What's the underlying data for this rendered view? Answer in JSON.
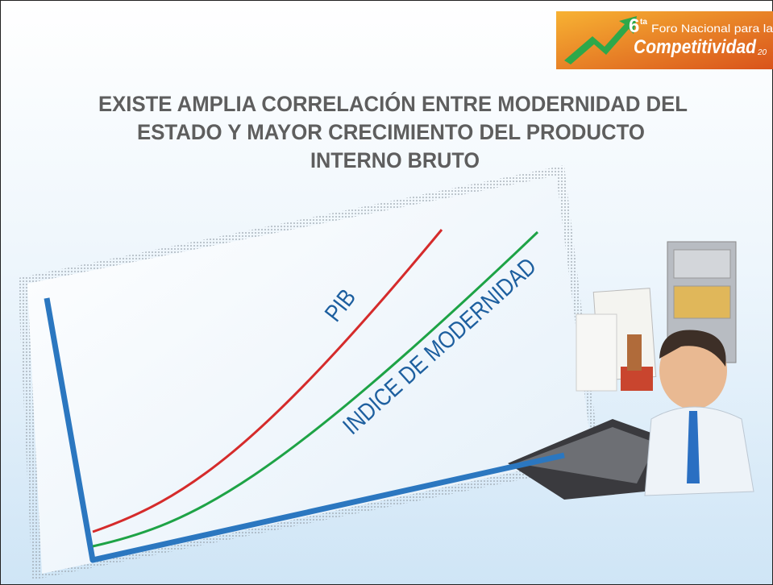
{
  "logo": {
    "number": "6",
    "ordinal": "ta",
    "line1": "Foro Nacional para la",
    "line2": "Competitividad",
    "year": "20"
  },
  "title": {
    "lines": [
      "EXISTE AMPLIA CORRELACIÓN ENTRE MODERNIDAD DEL",
      "ESTADO Y MAYOR CRECIMIENTO DEL PRODUCTO",
      "INTERNO BRUTO"
    ]
  },
  "chart": {
    "labels": {
      "red": "PIB",
      "green": "INDICE DE MODERNIDAD"
    }
  }
}
